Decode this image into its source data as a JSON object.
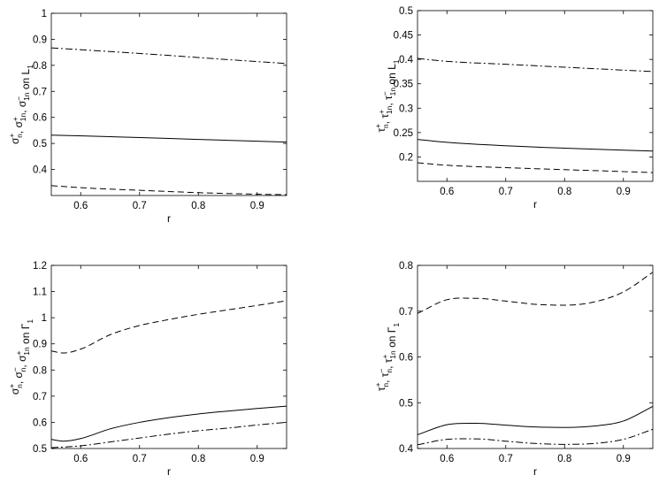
{
  "chart_data": [
    {
      "type": "line",
      "panel": "top-left",
      "xlabel": "r",
      "ylabel": {
        "lead": "σ",
        "parts": [
          {
            "sub": "n",
            "sup": "+"
          },
          {
            "text": ", σ"
          },
          {
            "sub": "1n",
            "sup": "+"
          },
          {
            "text": ", σ"
          },
          {
            "sub": "1n",
            "sup": "−"
          },
          {
            "text": " on L"
          },
          {
            "sub": "1",
            "sup": ""
          }
        ]
      },
      "xlim": [
        0.55,
        0.95
      ],
      "ylim": [
        0.3,
        1.0
      ],
      "xticks": [
        "0.6",
        "0.7",
        "0.8",
        "0.9"
      ],
      "yticks": [
        "0.4",
        "0.5",
        "0.6",
        "0.7",
        "0.8",
        "0.9",
        "1"
      ],
      "series": [
        {
          "style": "solid",
          "x": [
            0.55,
            0.65,
            0.75,
            0.85,
            0.95
          ],
          "y": [
            0.532,
            0.526,
            0.519,
            0.512,
            0.505
          ]
        },
        {
          "style": "dashed",
          "x": [
            0.55,
            0.6,
            0.7,
            0.8,
            0.9,
            0.95
          ],
          "y": [
            0.338,
            0.33,
            0.32,
            0.311,
            0.305,
            0.303
          ]
        },
        {
          "style": "dashdot",
          "x": [
            0.55,
            0.65,
            0.75,
            0.85,
            0.95
          ],
          "y": [
            0.867,
            0.853,
            0.838,
            0.822,
            0.807
          ]
        }
      ]
    },
    {
      "type": "line",
      "panel": "top-right",
      "xlabel": "r",
      "ylabel": {
        "lead": "τ",
        "parts": [
          {
            "sub": "n",
            "sup": "+"
          },
          {
            "text": ", τ"
          },
          {
            "sub": "1n",
            "sup": "+"
          },
          {
            "text": ", τ"
          },
          {
            "sub": "1n",
            "sup": "−"
          },
          {
            "text": " on L"
          },
          {
            "sub": "1",
            "sup": ""
          }
        ]
      },
      "xlim": [
        0.55,
        0.95
      ],
      "ylim": [
        0.15,
        0.5
      ],
      "xticks": [
        "0.6",
        "0.7",
        "0.8",
        "0.9"
      ],
      "yticks": [
        "0.2",
        "0.25",
        "0.3",
        "0.35",
        "0.4",
        "0.45",
        "0.5"
      ],
      "series": [
        {
          "style": "solid",
          "x": [
            0.55,
            0.6,
            0.7,
            0.8,
            0.9,
            0.95
          ],
          "y": [
            0.236,
            0.23,
            0.223,
            0.218,
            0.214,
            0.212
          ]
        },
        {
          "style": "dashed",
          "x": [
            0.55,
            0.6,
            0.7,
            0.8,
            0.9,
            0.95
          ],
          "y": [
            0.188,
            0.183,
            0.178,
            0.174,
            0.17,
            0.168
          ]
        },
        {
          "style": "dashdot",
          "x": [
            0.55,
            0.6,
            0.7,
            0.8,
            0.9,
            0.95
          ],
          "y": [
            0.402,
            0.396,
            0.39,
            0.384,
            0.378,
            0.375
          ]
        }
      ]
    },
    {
      "type": "line",
      "panel": "bottom-left",
      "xlabel": "r",
      "ylabel": {
        "lead": "σ",
        "parts": [
          {
            "sub": "n",
            "sup": "+"
          },
          {
            "text": ", σ"
          },
          {
            "sub": "n",
            "sup": "−"
          },
          {
            "text": ", σ"
          },
          {
            "sub": "1n",
            "sup": "+"
          },
          {
            "text": " on Γ"
          },
          {
            "sub": "1",
            "sup": ""
          }
        ]
      },
      "xlim": [
        0.55,
        0.95
      ],
      "ylim": [
        0.5,
        1.2
      ],
      "xticks": [
        "0.6",
        "0.7",
        "0.8",
        "0.9"
      ],
      "yticks": [
        "0.5",
        "0.6",
        "0.7",
        "0.8",
        "0.9",
        "1",
        "1.1",
        "1.2"
      ],
      "series": [
        {
          "style": "solid",
          "x": [
            0.55,
            0.57,
            0.6,
            0.65,
            0.7,
            0.75,
            0.8,
            0.85,
            0.9,
            0.95
          ],
          "y": [
            0.535,
            0.528,
            0.538,
            0.575,
            0.6,
            0.618,
            0.632,
            0.643,
            0.653,
            0.662
          ]
        },
        {
          "style": "dashed",
          "x": [
            0.55,
            0.57,
            0.6,
            0.65,
            0.7,
            0.75,
            0.8,
            0.85,
            0.9,
            0.95
          ],
          "y": [
            0.873,
            0.865,
            0.88,
            0.935,
            0.97,
            0.993,
            1.013,
            1.03,
            1.047,
            1.065
          ]
        },
        {
          "style": "dashdot",
          "x": [
            0.55,
            0.6,
            0.65,
            0.7,
            0.75,
            0.8,
            0.85,
            0.9,
            0.95
          ],
          "y": [
            0.503,
            0.51,
            0.525,
            0.54,
            0.555,
            0.568,
            0.578,
            0.59,
            0.6
          ]
        }
      ]
    },
    {
      "type": "line",
      "panel": "bottom-right",
      "xlabel": "r",
      "ylabel": {
        "lead": "τ",
        "parts": [
          {
            "sub": "n",
            "sup": "+"
          },
          {
            "text": ", τ"
          },
          {
            "sub": "n",
            "sup": "−"
          },
          {
            "text": ", τ"
          },
          {
            "sub": "1n",
            "sup": "+"
          },
          {
            "text": " on Γ"
          },
          {
            "sub": "1",
            "sup": ""
          }
        ]
      },
      "xlim": [
        0.55,
        0.95
      ],
      "ylim": [
        0.4,
        0.8
      ],
      "xticks": [
        "0.6",
        "0.7",
        "0.8",
        "0.9"
      ],
      "yticks": [
        "0.4",
        "0.5",
        "0.6",
        "0.7",
        "0.8"
      ],
      "series": [
        {
          "style": "solid",
          "x": [
            0.55,
            0.6,
            0.65,
            0.7,
            0.75,
            0.8,
            0.85,
            0.9,
            0.95
          ],
          "y": [
            0.43,
            0.452,
            0.455,
            0.451,
            0.447,
            0.446,
            0.449,
            0.46,
            0.492
          ]
        },
        {
          "style": "dashed",
          "x": [
            0.55,
            0.6,
            0.65,
            0.7,
            0.75,
            0.8,
            0.85,
            0.9,
            0.95
          ],
          "y": [
            0.695,
            0.725,
            0.728,
            0.722,
            0.715,
            0.713,
            0.72,
            0.742,
            0.785
          ]
        },
        {
          "style": "dashdot",
          "x": [
            0.55,
            0.6,
            0.65,
            0.7,
            0.75,
            0.8,
            0.85,
            0.9,
            0.95
          ],
          "y": [
            0.408,
            0.42,
            0.421,
            0.416,
            0.411,
            0.409,
            0.411,
            0.42,
            0.442
          ]
        }
      ]
    }
  ]
}
